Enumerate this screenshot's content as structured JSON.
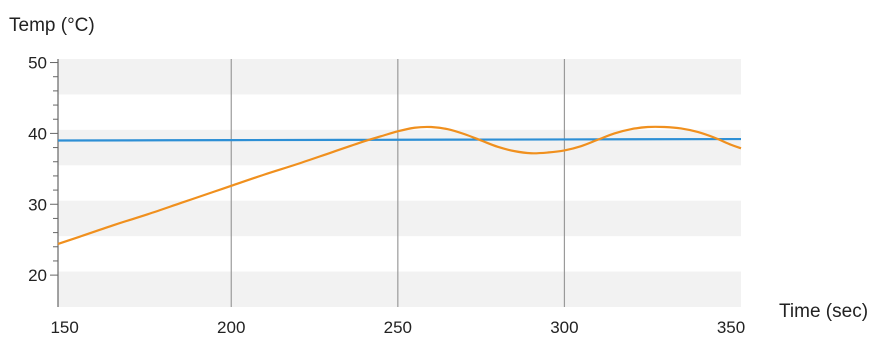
{
  "chart_data": {
    "type": "line",
    "ylabel": "Temp (°C)",
    "xlabel": "Time (sec)",
    "xlim": [
      148,
      353
    ],
    "ylim": [
      15.5,
      50.5
    ],
    "x_ticks": [
      150,
      200,
      250,
      300,
      350
    ],
    "y_ticks": [
      20,
      30,
      40,
      50
    ],
    "y_minor_step": 2,
    "vertical_gridlines": [
      200,
      250,
      300
    ],
    "horizontal_bands": [
      [
        15.5,
        20.5
      ],
      [
        25.5,
        30.5
      ],
      [
        35.5,
        40.5
      ],
      [
        45.5,
        50.5
      ]
    ],
    "grid": true,
    "series": [
      {
        "color": "#2d8fd5",
        "x": [
          148,
          200,
          250,
          300,
          353
        ],
        "y": [
          39.0,
          39.05,
          39.1,
          39.15,
          39.2
        ]
      },
      {
        "color": "#f0901e",
        "x": [
          148,
          155,
          165,
          175,
          185,
          195,
          200,
          210,
          220,
          230,
          240,
          245,
          250,
          255,
          260,
          265,
          270,
          275,
          280,
          285,
          290,
          295,
          300,
          305,
          310,
          315,
          320,
          325,
          330,
          335,
          340,
          345,
          350,
          353
        ],
        "y": [
          24.4,
          25.5,
          27.1,
          28.6,
          30.2,
          31.8,
          32.6,
          34.2,
          35.7,
          37.3,
          38.9,
          39.6,
          40.3,
          40.8,
          40.9,
          40.6,
          39.9,
          39.0,
          38.1,
          37.5,
          37.2,
          37.3,
          37.6,
          38.2,
          39.1,
          40.0,
          40.6,
          40.9,
          40.9,
          40.7,
          40.2,
          39.4,
          38.4,
          37.9
        ]
      }
    ]
  }
}
